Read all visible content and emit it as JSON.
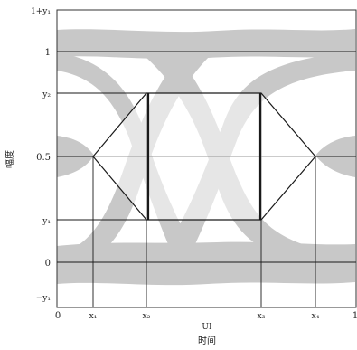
{
  "diagram": {
    "y_axis_label": "幅度",
    "x_axis_label": "时间",
    "x_unit_label": "UI",
    "y_ticks": {
      "top": "1+y₁",
      "one": "1",
      "y2": "y₂",
      "half": "0.5",
      "y1": "y₁",
      "zero": "0",
      "bottom": "−y₁"
    },
    "x_ticks": {
      "zero": "0",
      "x1": "x₁",
      "x2": "x₂",
      "x3": "x₃",
      "x4": "x₄",
      "one": "1"
    },
    "colors": {
      "eye_band": "#c8c8c8",
      "lines": "#1a1a1a",
      "frame": "#333333"
    }
  }
}
